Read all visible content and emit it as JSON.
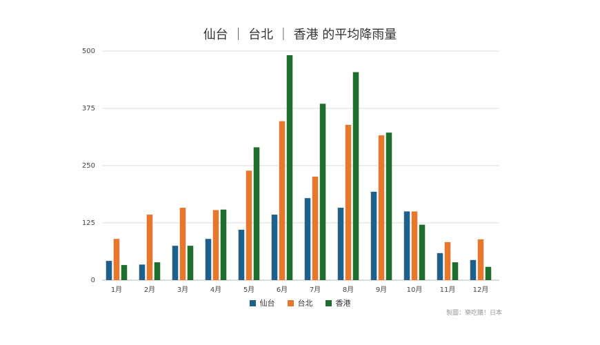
{
  "chart_data": {
    "type": "bar",
    "title": "仙台 ｜ 台北 ｜ 香港 的平均降雨量",
    "categories": [
      "1月",
      "2月",
      "3月",
      "4月",
      "5月",
      "6月",
      "7月",
      "8月",
      "9月",
      "10月",
      "11月",
      "12月"
    ],
    "series": [
      {
        "name": "仙台",
        "color": "#1f5f8b",
        "values": [
          42,
          34,
          75,
          90,
          110,
          143,
          179,
          158,
          193,
          150,
          59,
          44
        ]
      },
      {
        "name": "台北",
        "color": "#e8772e",
        "values": [
          90,
          143,
          158,
          153,
          239,
          347,
          226,
          339,
          316,
          150,
          83,
          89
        ]
      },
      {
        "name": "香港",
        "color": "#1f6e2e",
        "values": [
          33,
          39,
          75,
          154,
          290,
          491,
          385,
          454,
          322,
          121,
          39,
          29
        ]
      }
    ],
    "yticks": [
      0,
      125,
      250,
      375,
      500
    ],
    "ylim": [
      0,
      500
    ],
    "grid": true,
    "legend_position": "bottom-center",
    "credit": "製圖：樂吃購！日本"
  }
}
